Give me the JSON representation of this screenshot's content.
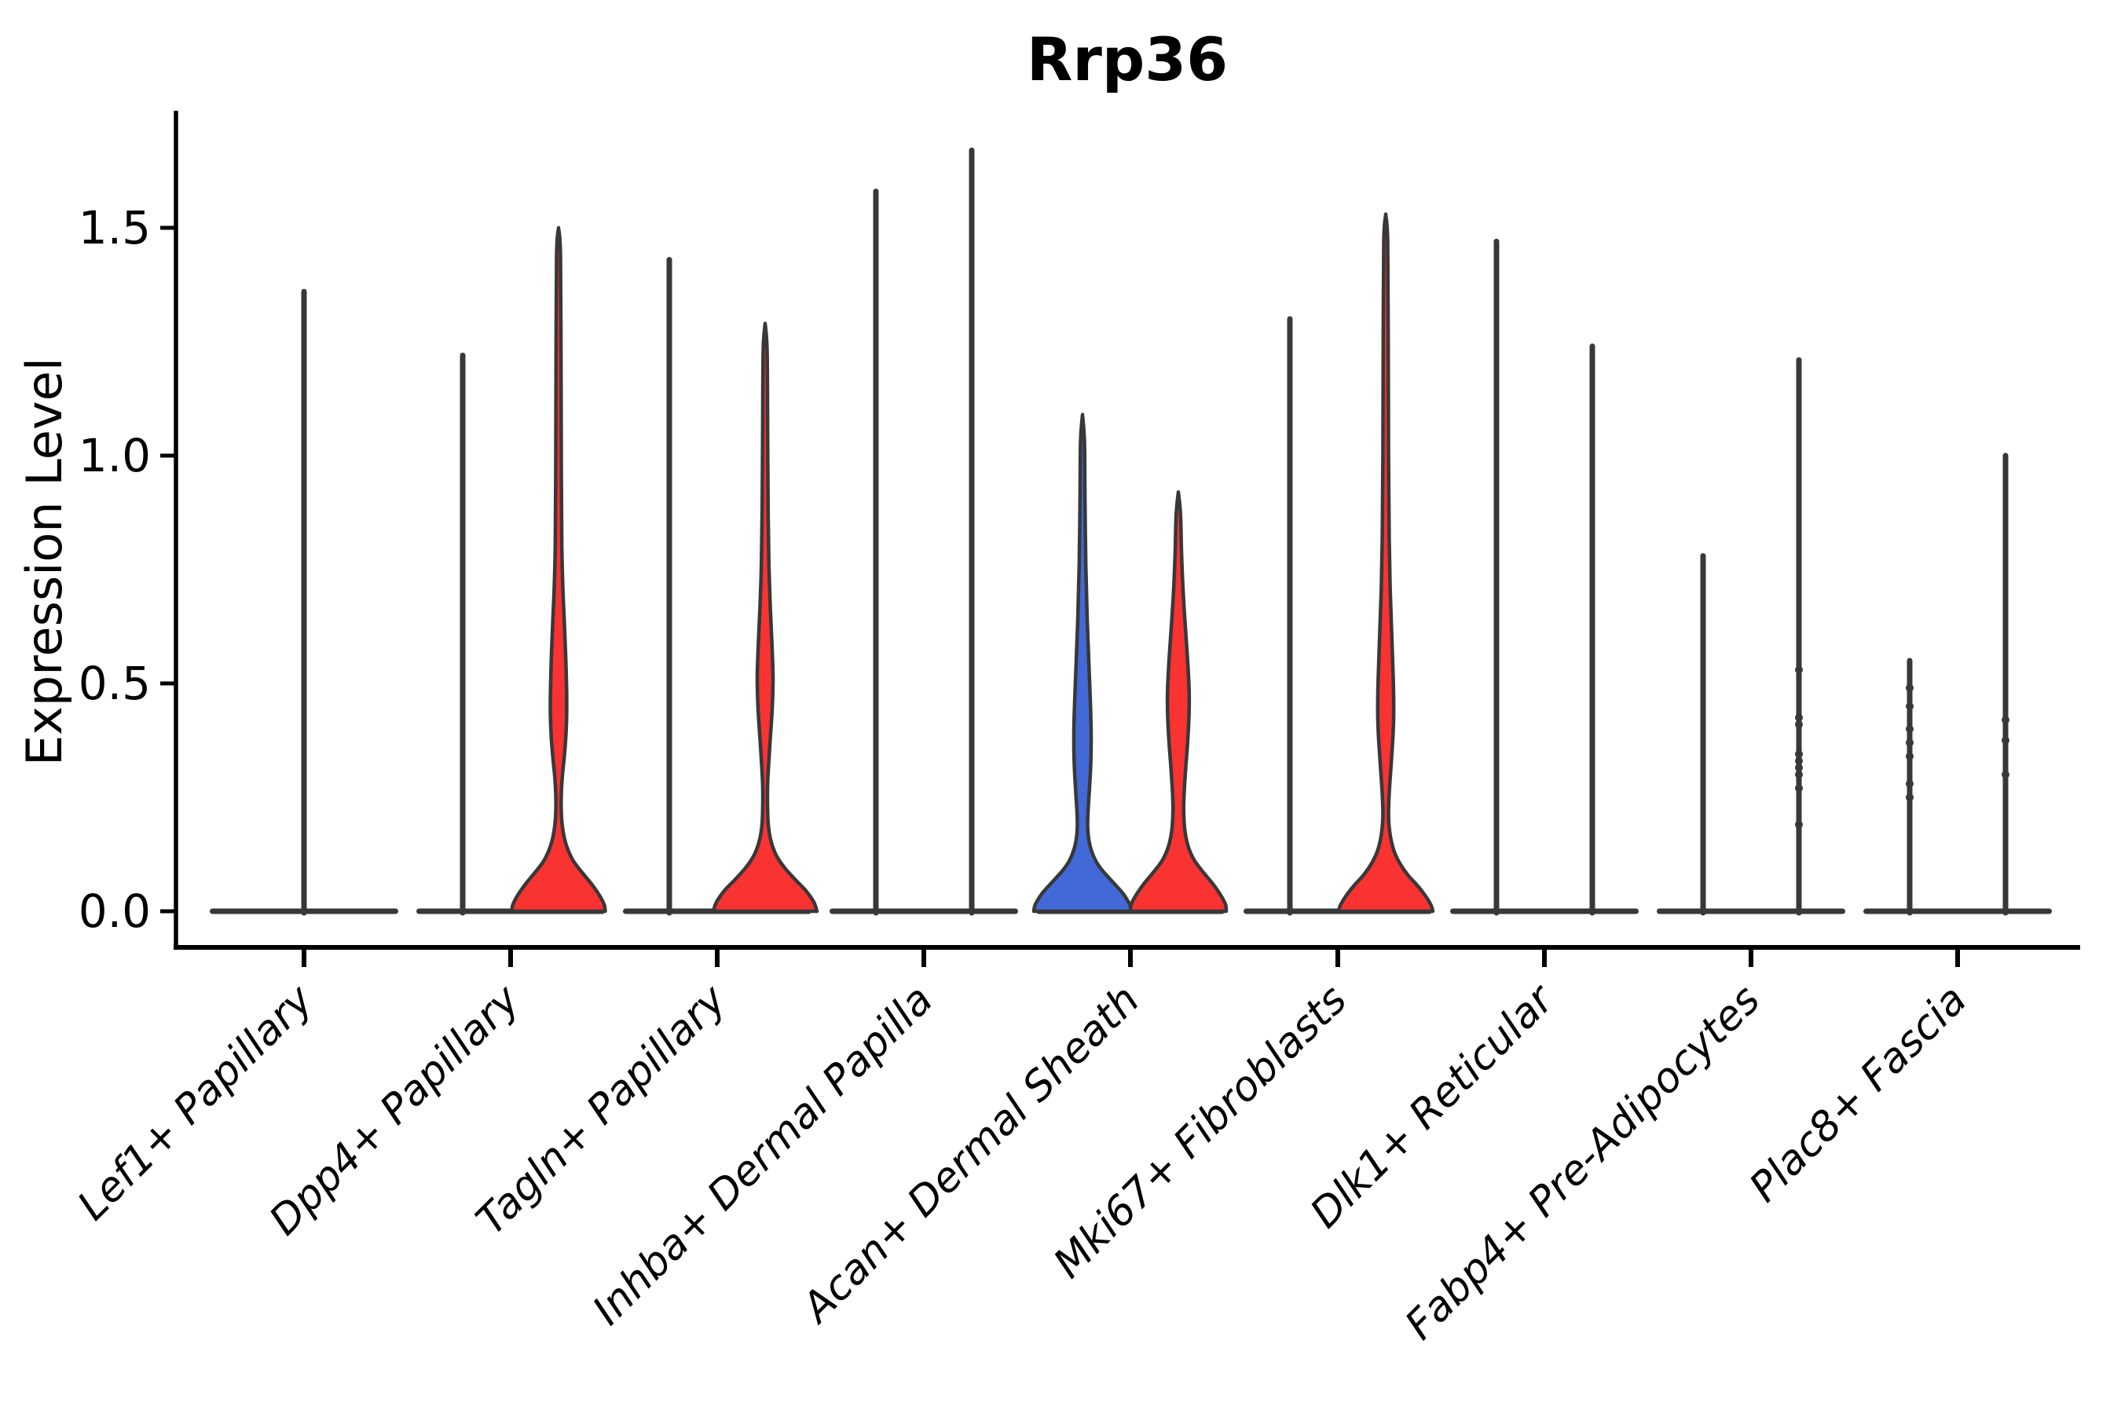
{
  "chart_data": {
    "type": "violin",
    "title": "Rrp36",
    "xlabel": "",
    "ylabel": "Expression Level",
    "ylim": [
      -0.06,
      1.76
    ],
    "yticks": [
      0.0,
      0.5,
      1.0,
      1.5
    ],
    "ytick_labels": [
      "0.0",
      "0.5",
      "1.0",
      "1.5"
    ],
    "grid": false,
    "legend": "none",
    "categories": [
      "Lef1+ Papillary",
      "Dpp4+ Papillary",
      "Tagln+ Papillary",
      "Inhba+ Dermal Papilla",
      "Acan+ Dermal Sheath",
      "Mki67+ Fibroblasts",
      "Dlk1+ Reticular",
      "Fabp4+ Pre-Adipocytes",
      "Plac8+ Fascia"
    ],
    "colors": {
      "red_fill": "#F93232",
      "blue_fill": "#4269D7",
      "outline": "#383838",
      "axis": "#000000"
    },
    "violins": [
      {
        "category": 0,
        "position": "center",
        "fill": "none",
        "max": 1.36,
        "dots": []
      },
      {
        "category": 1,
        "position": "left",
        "fill": "none",
        "max": 1.22,
        "dots": []
      },
      {
        "category": 1,
        "position": "right",
        "fill": "red",
        "max": 1.5,
        "mode": 0.46,
        "profile": [
          [
            1.5,
            0
          ],
          [
            1.44,
            2.5
          ],
          [
            1.2,
            3.2
          ],
          [
            0.95,
            3.6
          ],
          [
            0.8,
            4.2
          ],
          [
            0.71,
            5.5
          ],
          [
            0.63,
            7.5
          ],
          [
            0.55,
            9.3
          ],
          [
            0.47,
            10.4
          ],
          [
            0.42,
            10.2
          ],
          [
            0.37,
            8.8
          ],
          [
            0.33,
            6.8
          ],
          [
            0.295,
            4.8
          ],
          [
            0.26,
            3.6
          ],
          [
            0.225,
            3.4
          ],
          [
            0.19,
            4.6
          ],
          [
            0.16,
            7.5
          ],
          [
            0.135,
            12
          ],
          [
            0.11,
            19
          ],
          [
            0.085,
            30
          ],
          [
            0.06,
            42
          ],
          [
            0.035,
            52
          ],
          [
            0.015,
            58
          ],
          [
            0.0,
            59.5
          ]
        ]
      },
      {
        "category": 2,
        "position": "left",
        "fill": "none",
        "max": 1.43,
        "dots": []
      },
      {
        "category": 2,
        "position": "right",
        "fill": "red",
        "max": 1.29,
        "mode": 0.52,
        "profile": [
          [
            1.29,
            0
          ],
          [
            1.23,
            2.5
          ],
          [
            1.05,
            3.2
          ],
          [
            0.88,
            3.8
          ],
          [
            0.76,
            4.8
          ],
          [
            0.67,
            6.5
          ],
          [
            0.59,
            8.6
          ],
          [
            0.52,
            10.0
          ],
          [
            0.47,
            9.6
          ],
          [
            0.42,
            8.2
          ],
          [
            0.37,
            6.2
          ],
          [
            0.32,
            4.4
          ],
          [
            0.28,
            3.2
          ],
          [
            0.24,
            3.0
          ],
          [
            0.2,
            3.6
          ],
          [
            0.17,
            5.5
          ],
          [
            0.145,
            9
          ],
          [
            0.12,
            15
          ],
          [
            0.095,
            25
          ],
          [
            0.07,
            38
          ],
          [
            0.045,
            52
          ],
          [
            0.02,
            62
          ],
          [
            0.0,
            66
          ]
        ]
      },
      {
        "category": 3,
        "position": "left",
        "fill": "none",
        "max": 1.58,
        "dots": []
      },
      {
        "category": 3,
        "position": "right",
        "fill": "none",
        "max": 1.67,
        "dots": []
      },
      {
        "category": 4,
        "position": "left",
        "fill": "blue",
        "max": 1.09,
        "mode": 0.37,
        "profile": [
          [
            1.09,
            0
          ],
          [
            1.03,
            2.5
          ],
          [
            0.9,
            3.2
          ],
          [
            0.76,
            4.2
          ],
          [
            0.64,
            6.0
          ],
          [
            0.54,
            8.2
          ],
          [
            0.46,
            10.0
          ],
          [
            0.39,
            11.0
          ],
          [
            0.34,
            10.8
          ],
          [
            0.29,
            9.6
          ],
          [
            0.245,
            8.0
          ],
          [
            0.21,
            6.8
          ],
          [
            0.185,
            6.6
          ],
          [
            0.16,
            7.8
          ],
          [
            0.135,
            11
          ],
          [
            0.11,
            17
          ],
          [
            0.09,
            25
          ],
          [
            0.065,
            38
          ],
          [
            0.04,
            51
          ],
          [
            0.015,
            60
          ],
          [
            0.0,
            62
          ]
        ]
      },
      {
        "category": 4,
        "position": "right",
        "fill": "red",
        "max": 0.92,
        "mode": 0.46,
        "profile": [
          [
            0.92,
            0
          ],
          [
            0.87,
            2.8
          ],
          [
            0.78,
            4.2
          ],
          [
            0.69,
            6.5
          ],
          [
            0.61,
            9.5
          ],
          [
            0.54,
            12.2
          ],
          [
            0.48,
            13.8
          ],
          [
            0.43,
            13.6
          ],
          [
            0.37,
            11.8
          ],
          [
            0.31,
            9.2
          ],
          [
            0.26,
            7.4
          ],
          [
            0.225,
            6.8
          ],
          [
            0.19,
            7.6
          ],
          [
            0.16,
            10
          ],
          [
            0.135,
            14
          ],
          [
            0.11,
            21
          ],
          [
            0.085,
            32
          ],
          [
            0.06,
            44
          ],
          [
            0.035,
            54
          ],
          [
            0.015,
            60
          ],
          [
            0.0,
            61
          ]
        ]
      },
      {
        "category": 5,
        "position": "left",
        "fill": "none",
        "max": 1.3,
        "dots": []
      },
      {
        "category": 5,
        "position": "right",
        "fill": "red",
        "max": 1.53,
        "mode": 0.43,
        "profile": [
          [
            1.53,
            0
          ],
          [
            1.47,
            2.5
          ],
          [
            1.25,
            3.2
          ],
          [
            1.0,
            3.6
          ],
          [
            0.82,
            4.4
          ],
          [
            0.7,
            5.8
          ],
          [
            0.6,
            7.8
          ],
          [
            0.51,
            9.6
          ],
          [
            0.44,
            10.2
          ],
          [
            0.39,
            9.4
          ],
          [
            0.34,
            7.6
          ],
          [
            0.29,
            5.6
          ],
          [
            0.25,
            4.2
          ],
          [
            0.215,
            3.6
          ],
          [
            0.185,
            4.4
          ],
          [
            0.155,
            7
          ],
          [
            0.13,
            11
          ],
          [
            0.105,
            18
          ],
          [
            0.08,
            28
          ],
          [
            0.055,
            41
          ],
          [
            0.03,
            52
          ],
          [
            0.012,
            58
          ],
          [
            0.0,
            60
          ]
        ]
      },
      {
        "category": 6,
        "position": "left",
        "fill": "none",
        "max": 1.47,
        "dots": []
      },
      {
        "category": 6,
        "position": "right",
        "fill": "none",
        "max": 1.24,
        "dots": []
      },
      {
        "category": 7,
        "position": "left",
        "fill": "none",
        "max": 0.78,
        "dots": []
      },
      {
        "category": 7,
        "position": "right",
        "fill": "none",
        "max": 1.21,
        "dots": [
          0.53,
          0.425,
          0.41,
          0.345,
          0.33,
          0.315,
          0.3,
          0.27,
          0.19
        ]
      },
      {
        "category": 8,
        "position": "left",
        "fill": "none",
        "max": 0.55,
        "dots": [
          0.49,
          0.45,
          0.4,
          0.37,
          0.34,
          0.28,
          0.25
        ]
      },
      {
        "category": 8,
        "position": "right",
        "fill": "none",
        "max": 1.0,
        "dots": [
          0.42,
          0.375,
          0.3
        ]
      }
    ]
  }
}
